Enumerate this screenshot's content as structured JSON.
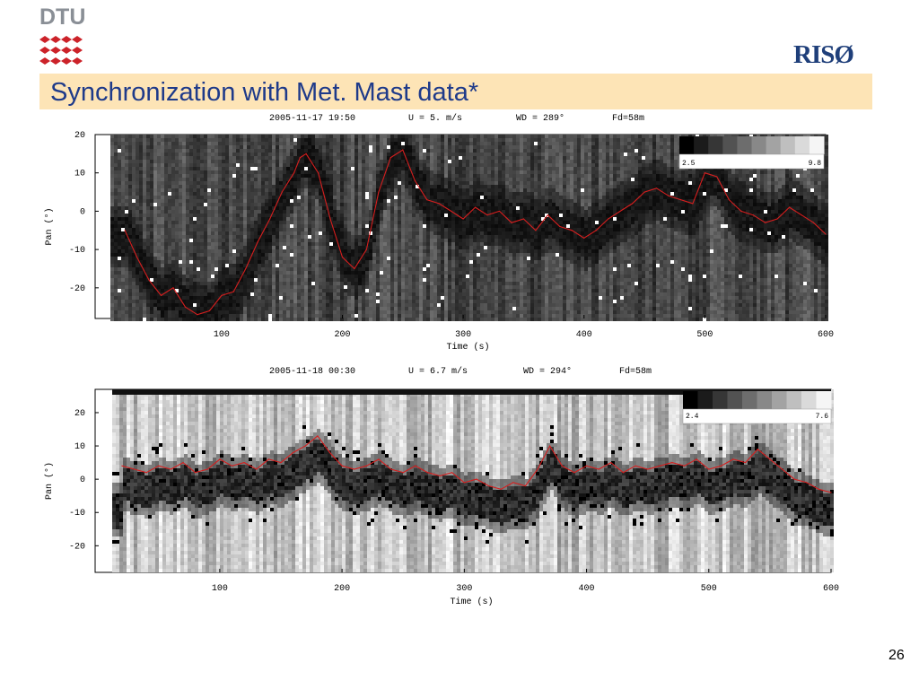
{
  "logos": {
    "left_text": "DTU",
    "right_text": "RISØ"
  },
  "slide": {
    "title": "Synchronization with Met. Mast data*",
    "page_number": "26"
  },
  "colors": {
    "title_bar": "#fde4b6",
    "title_text": "#1e3a8a",
    "dtu_red": "#cc2229",
    "riso_blue": "#1f3f7a",
    "trace_red": "#d61e1e"
  },
  "chart_data": [
    {
      "type": "heatmap",
      "header": {
        "datetime": "2005-11-17 19:50",
        "wind_speed": "U = 5. m/s",
        "wind_dir": "WD = 289°",
        "fd": "Fd=58m"
      },
      "xlabel": "Time (s)",
      "ylabel": "Pan (°)",
      "xlim": [
        8,
        600
      ],
      "ylim": [
        -28,
        20
      ],
      "xticks": [
        100,
        200,
        300,
        400,
        500,
        600
      ],
      "yticks": [
        20,
        10,
        0,
        -10,
        -20
      ],
      "colorbar": {
        "min_label": "2.5",
        "max_label": "9.8"
      },
      "background": "dark",
      "series": [
        {
          "x": [
            20,
            30,
            40,
            50,
            60,
            70,
            80,
            90,
            100,
            110,
            120,
            130,
            140,
            150,
            160,
            165,
            170,
            180,
            190,
            200,
            210,
            220,
            230,
            240,
            250,
            260,
            270,
            280,
            290,
            300,
            310,
            320,
            330,
            340,
            350,
            360,
            370,
            380,
            390,
            400,
            410,
            420,
            430,
            440,
            450,
            460,
            470,
            480,
            490,
            500,
            510,
            520,
            530,
            540,
            550,
            560,
            570,
            580,
            590,
            600
          ],
          "y": [
            -5,
            -12,
            -18,
            -22,
            -20,
            -25,
            -27,
            -26,
            -22,
            -21,
            -15,
            -8,
            -2,
            5,
            10,
            14,
            15,
            10,
            -2,
            -12,
            -15,
            -10,
            5,
            14,
            16,
            8,
            3,
            2,
            0,
            -2,
            1,
            -1,
            0,
            -3,
            -2,
            -5,
            -1,
            -4,
            -5,
            -7,
            -5,
            -2,
            0,
            2,
            5,
            6,
            4,
            3,
            2,
            10,
            9,
            3,
            0,
            -1,
            -3,
            -2,
            1,
            -1,
            -3,
            -6
          ]
        }
      ]
    },
    {
      "type": "heatmap",
      "header": {
        "datetime": "2005-11-18 00:30",
        "wind_speed": "U = 6.7 m/s",
        "wind_dir": "WD = 294°",
        "fd": "Fd=58m"
      },
      "xlabel": "Time (s)",
      "ylabel": "Pan (°)",
      "xlim": [
        12,
        600
      ],
      "ylim": [
        -28,
        27
      ],
      "xticks": [
        100,
        200,
        300,
        400,
        500,
        600
      ],
      "yticks": [
        20,
        10,
        0,
        -10,
        -20
      ],
      "colorbar": {
        "min_label": "2.4",
        "max_label": "7.6"
      },
      "background": "light",
      "series": [
        {
          "x": [
            20,
            30,
            40,
            50,
            60,
            70,
            80,
            90,
            100,
            110,
            120,
            130,
            140,
            150,
            160,
            170,
            180,
            190,
            200,
            210,
            220,
            230,
            240,
            250,
            260,
            270,
            280,
            290,
            300,
            310,
            320,
            330,
            340,
            350,
            360,
            370,
            380,
            390,
            400,
            410,
            420,
            430,
            440,
            450,
            460,
            470,
            480,
            490,
            500,
            510,
            520,
            530,
            540,
            550,
            560,
            570,
            580,
            590,
            600
          ],
          "y": [
            4,
            3,
            2,
            4,
            3,
            5,
            2,
            3,
            6,
            4,
            5,
            3,
            6,
            5,
            8,
            10,
            13,
            8,
            4,
            3,
            4,
            6,
            3,
            2,
            4,
            2,
            1,
            2,
            -1,
            0,
            -2,
            -3,
            -1,
            -2,
            3,
            10,
            4,
            2,
            4,
            3,
            5,
            2,
            4,
            3,
            4,
            5,
            4,
            6,
            3,
            4,
            6,
            5,
            9,
            6,
            3,
            0,
            -1,
            -3,
            -4
          ]
        }
      ]
    }
  ]
}
